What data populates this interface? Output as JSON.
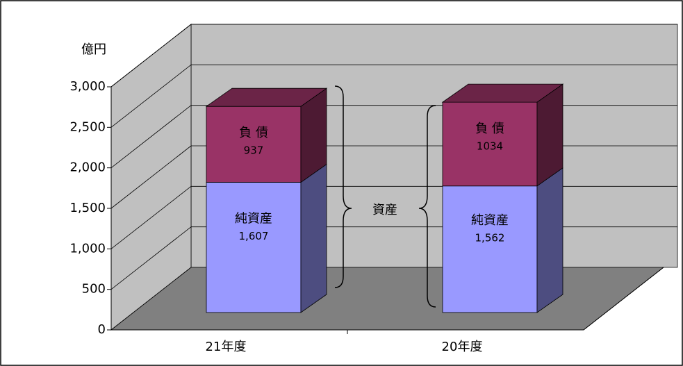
{
  "chart_data": {
    "type": "bar",
    "stacked": true,
    "unit_label": "億円",
    "annotation": "資産",
    "categories": [
      "21年度",
      "20年度"
    ],
    "series": [
      {
        "name": "純資産",
        "color": "#9999ff",
        "values": [
          1607,
          1562
        ],
        "value_labels": [
          "1,607",
          "1,562"
        ]
      },
      {
        "name": "負 債",
        "color": "#993366",
        "values": [
          937,
          1034
        ]
      }
    ],
    "ylim": [
      0,
      3000
    ],
    "yticks": [
      0,
      500,
      {
        "value": 1000,
        "label": "1,000"
      },
      {
        "value": 1500,
        "label": "1,500"
      },
      {
        "value": 2000,
        "label": "2,000"
      },
      {
        "value": 2500,
        "label": "2,500"
      },
      {
        "value": 3000,
        "label": "3,000"
      }
    ],
    "grid": true
  }
}
